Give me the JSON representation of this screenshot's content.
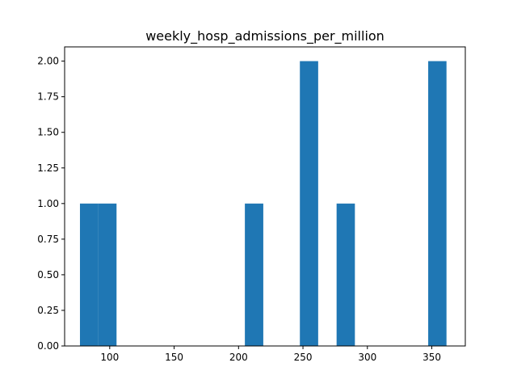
{
  "chart_data": {
    "type": "histogram",
    "title": "weekly_hosp_admissions_per_million",
    "xlabel": "",
    "ylabel": "",
    "xlim": [
      65,
      376
    ],
    "ylim": [
      0,
      2.1
    ],
    "x_ticks": [
      100,
      150,
      200,
      250,
      300,
      350
    ],
    "x_tick_labels": [
      "100",
      "150",
      "200",
      "250",
      "300",
      "350"
    ],
    "y_ticks": [
      0,
      0.25,
      0.5,
      0.75,
      1.0,
      1.25,
      1.5,
      1.75,
      2.0
    ],
    "y_tick_labels": [
      "0.00",
      "0.25",
      "0.50",
      "0.75",
      "1.00",
      "1.25",
      "1.50",
      "1.75",
      "2.00"
    ],
    "bins": [
      {
        "x0": 76.9,
        "x1": 91.1,
        "count": 1
      },
      {
        "x0": 91.1,
        "x1": 105.3,
        "count": 1
      },
      {
        "x0": 204.9,
        "x1": 219.2,
        "count": 1
      },
      {
        "x0": 247.6,
        "x1": 261.8,
        "count": 2
      },
      {
        "x0": 276.1,
        "x1": 290.3,
        "count": 1
      },
      {
        "x0": 347.2,
        "x1": 361.4,
        "count": 2
      }
    ],
    "bar_color": "#1f77b4",
    "grid": false,
    "legend": "none"
  }
}
